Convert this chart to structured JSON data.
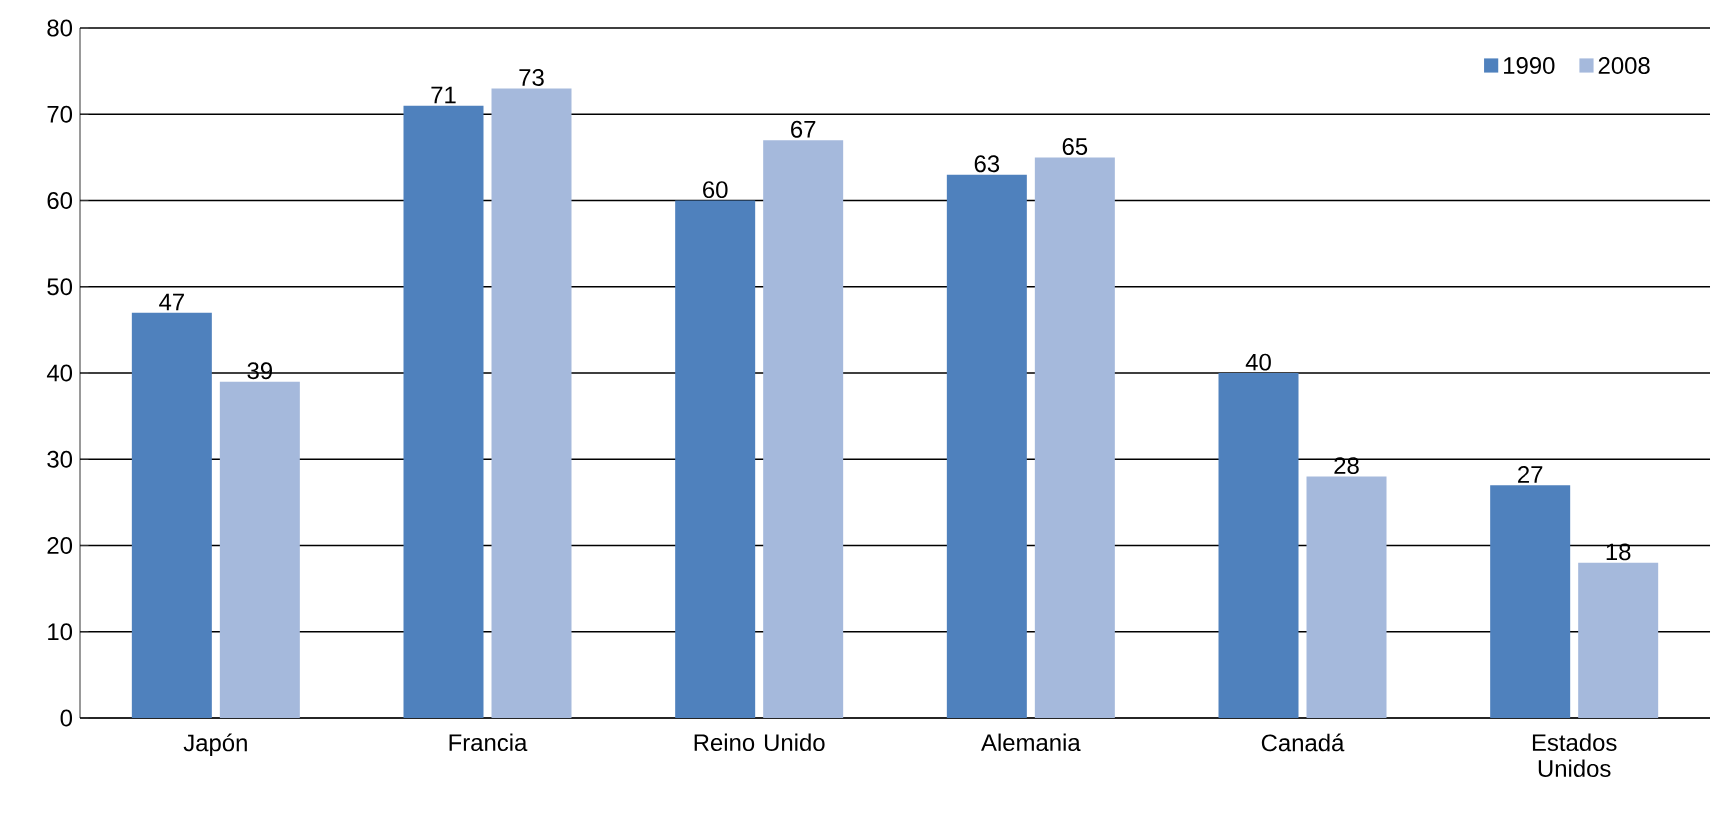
{
  "chart_data": {
    "type": "bar",
    "categories": [
      "Japón",
      "Francia",
      "Reino Unido",
      "Alemania",
      "Canadá",
      "Estados Unidos"
    ],
    "series": [
      {
        "name": "1990",
        "color": "#4f81bd",
        "values": [
          47,
          71,
          60,
          63,
          40,
          27
        ]
      },
      {
        "name": "2008",
        "color": "#a5b9dc",
        "values": [
          39,
          73,
          67,
          65,
          28,
          18
        ]
      }
    ],
    "ylim": [
      0,
      80
    ],
    "yticks": [
      0,
      10,
      20,
      30,
      40,
      50,
      60,
      70,
      80
    ],
    "grid": "y",
    "legend": "top right",
    "data_labels": true
  }
}
